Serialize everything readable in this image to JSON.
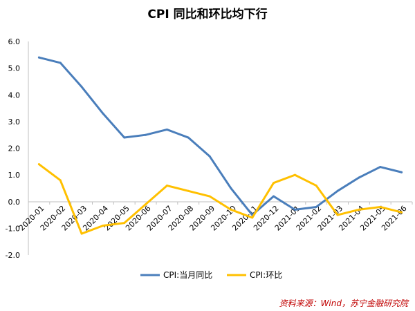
{
  "chart_data": {
    "type": "line",
    "title": "CPI 同比和环比均下行",
    "categories": [
      "2020-01",
      "2020-02",
      "2020-03",
      "2020-04",
      "2020-05",
      "2020-06",
      "2020-07",
      "2020-08",
      "2020-09",
      "2020-10",
      "2020-11",
      "2020-12",
      "2021-01",
      "2021-02",
      "2021-03",
      "2021-04",
      "2021-05",
      "2021-06"
    ],
    "series": [
      {
        "name": "CPI:当月同比",
        "color": "#4a7ebb",
        "values": [
          5.4,
          5.2,
          4.3,
          3.3,
          2.4,
          2.5,
          2.7,
          2.4,
          1.7,
          0.5,
          -0.5,
          0.2,
          -0.3,
          -0.2,
          0.4,
          0.9,
          1.3,
          1.1
        ]
      },
      {
        "name": "CPI:环比",
        "color": "#ffc000",
        "values": [
          1.4,
          0.8,
          -1.2,
          -0.9,
          -0.8,
          -0.1,
          0.6,
          0.4,
          0.2,
          -0.3,
          -0.6,
          0.7,
          1.0,
          0.6,
          -0.5,
          -0.3,
          -0.2,
          -0.4
        ]
      }
    ],
    "yticks": [
      "6.0",
      "5.0",
      "4.0",
      "3.0",
      "2.0",
      "1.0",
      "0.0",
      "-1.0",
      "-2.0"
    ],
    "ylim": [
      -2,
      6
    ],
    "grid": false,
    "legend_position": "bottom"
  },
  "source": "资料来源：Wind，苏宁金融研究院"
}
